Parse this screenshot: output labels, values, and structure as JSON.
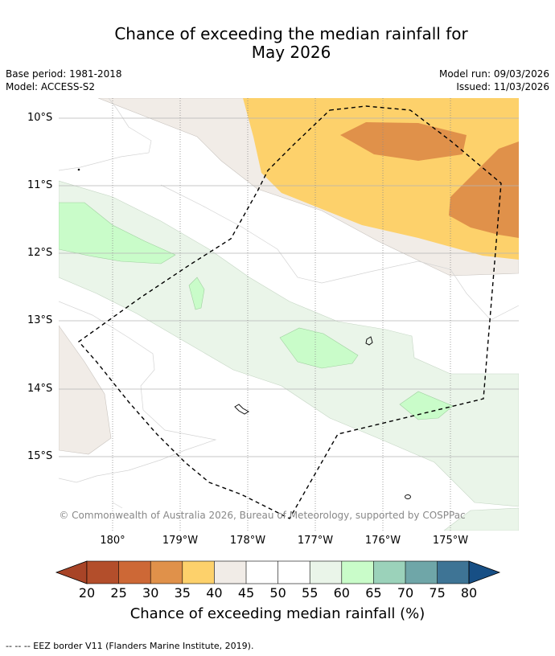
{
  "title_line1": "Chance of exceeding the median rainfall for",
  "title_line2": "May 2026",
  "meta_left": [
    "Base period: 1981-2018",
    "Model: ACCESS-S2"
  ],
  "meta_right": [
    "Model run: 09/03/2026",
    "Issued: 11/03/2026"
  ],
  "lat_labels": [
    "10°S",
    "11°S",
    "12°S",
    "13°S",
    "14°S",
    "15°S"
  ],
  "lon_labels": [
    "180°",
    "179°W",
    "178°W",
    "177°W",
    "176°W",
    "175°W"
  ],
  "copyright": "© Commonwealth of Australia 2026, Bureau of Meteorology, supported by COSPPac",
  "colorbar": {
    "ticks": [
      "20",
      "25",
      "30",
      "35",
      "40",
      "45",
      "50",
      "55",
      "60",
      "65",
      "70",
      "75",
      "80"
    ],
    "colors": [
      "#a84427",
      "#b34e2b",
      "#cd6836",
      "#e0914a",
      "#fdd16b",
      "#f1ece7",
      "#ffffff",
      "#ffffff",
      "#eaf5e9",
      "#c9fcc9",
      "#9bd2ba",
      "#6fa6a8",
      "#3e7495",
      "#174f85"
    ],
    "label": "Chance of exceeding median rainfall (%)"
  },
  "legend": "--  --  -- EEZ border V11 (Flanders Marine Institute, 2019)."
}
